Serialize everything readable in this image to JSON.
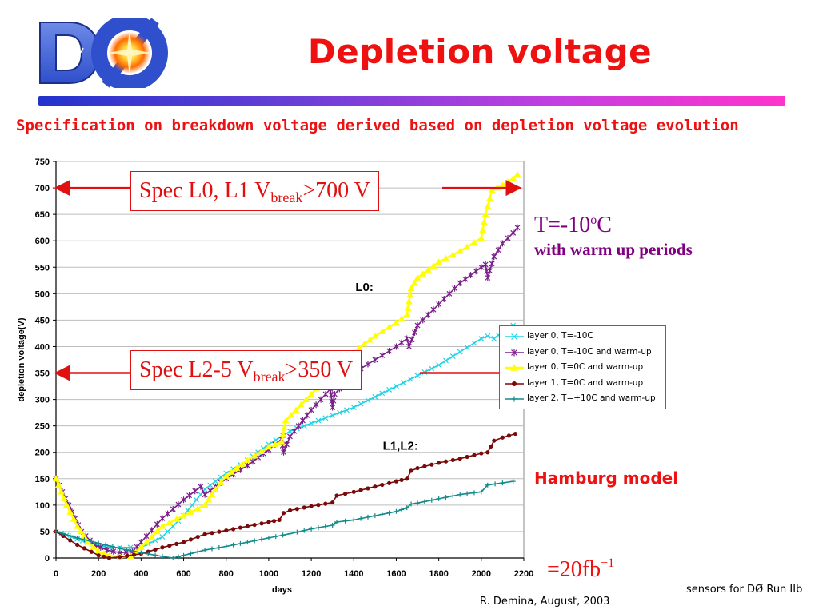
{
  "slide": {
    "title": "Depletion voltage",
    "subtitle": "Specification on breakdown voltage derived based on depletion voltage evolution",
    "logo_text": "DØ",
    "spec_l0l1": {
      "prefix": "Spec L0, L1 V",
      "sub": "break",
      "suffix": ">700 V"
    },
    "spec_l2l5": {
      "prefix": "Spec L2-5 V",
      "sub": "break",
      "suffix": ">350 V"
    },
    "temperature": {
      "main": "T=-10",
      "sup": "o",
      "unit": "C",
      "note": "with warm up periods"
    },
    "model": "Hamburg model",
    "luminosity": {
      "main": "=20fb",
      "sup": "−1"
    },
    "footer_right": "sensors for DØ Run IIb",
    "footer_left": "R. Demina, August, 2003"
  },
  "colors": {
    "title_red": "#ee1111",
    "spec_red": "#e01010",
    "purple_text": "#800080",
    "cyan": "#22d3e6",
    "purple": "#7a1f8a",
    "yellow": "#ffff00",
    "darkred": "#7a0a0a",
    "teal": "#138a8a"
  },
  "chart_data": {
    "type": "line",
    "xlabel": "days",
    "ylabel": "depletion voltage(V)",
    "xlim": [
      0,
      2200
    ],
    "ylim": [
      0,
      750
    ],
    "xticks": [
      0,
      200,
      400,
      600,
      800,
      1000,
      1200,
      1400,
      1600,
      1800,
      2000,
      2200
    ],
    "yticks": [
      0,
      50,
      100,
      150,
      200,
      250,
      300,
      350,
      400,
      450,
      500,
      550,
      600,
      650,
      700,
      750
    ],
    "grid": true,
    "legend_position": "right",
    "annotations": [
      "L0:",
      "L1,L2:"
    ],
    "reference_lines": [
      {
        "y": 700
      },
      {
        "y": 350
      }
    ],
    "series": [
      {
        "name": "layer 0, T=-10C",
        "color": "#22d3e6",
        "marker": "x",
        "x": [
          0,
          50,
          100,
          150,
          200,
          250,
          300,
          350,
          400,
          500,
          600,
          700,
          800,
          900,
          1000,
          1100,
          1200,
          1300,
          1400,
          1500,
          1600,
          1700,
          1800,
          1900,
          2000,
          2030,
          2060,
          2100,
          2150
        ],
        "y": [
          50,
          43,
          36,
          29,
          24,
          20,
          20,
          20,
          20,
          40,
          80,
          130,
          160,
          185,
          215,
          240,
          255,
          270,
          285,
          305,
          325,
          345,
          365,
          390,
          415,
          420,
          415,
          428,
          440
        ]
      },
      {
        "name": "layer 0, T=-10C and warm-up",
        "color": "#7a1f8a",
        "marker": "*",
        "x": [
          0,
          60,
          120,
          180,
          240,
          300,
          360,
          400,
          500,
          600,
          680,
          700,
          800,
          900,
          1000,
          1060,
          1070,
          1100,
          1200,
          1290,
          1300,
          1310,
          1400,
          1500,
          1600,
          1650,
          1660,
          1700,
          1800,
          1900,
          2000,
          2020,
          2030,
          2060,
          2100,
          2150,
          2170
        ],
        "y": [
          150,
          100,
          50,
          25,
          15,
          10,
          12,
          30,
          75,
          110,
          135,
          120,
          150,
          175,
          205,
          225,
          200,
          230,
          280,
          320,
          285,
          310,
          350,
          375,
          400,
          415,
          400,
          440,
          480,
          520,
          550,
          555,
          530,
          570,
          595,
          615,
          625
        ]
      },
      {
        "name": "layer 0, T=0C and warm-up",
        "color": "#ffff00",
        "marker": "triangle",
        "x": [
          0,
          50,
          100,
          150,
          200,
          250,
          300,
          350,
          400,
          500,
          600,
          700,
          750,
          800,
          900,
          1000,
          1060,
          1080,
          1200,
          1300,
          1400,
          1500,
          1600,
          1650,
          1670,
          1700,
          1800,
          1900,
          2000,
          2020,
          2050,
          2100,
          2150,
          2170
        ],
        "y": [
          150,
          100,
          60,
          30,
          12,
          5,
          2,
          3,
          20,
          60,
          80,
          100,
          130,
          155,
          185,
          210,
          220,
          260,
          310,
          355,
          390,
          420,
          445,
          460,
          510,
          530,
          560,
          580,
          605,
          650,
          695,
          705,
          718,
          725
        ]
      },
      {
        "name": "layer 1, T=0C and warm-up",
        "color": "#7a0a0a",
        "marker": "circle",
        "x": [
          0,
          100,
          200,
          250,
          300,
          400,
          500,
          600,
          700,
          800,
          900,
          1000,
          1050,
          1070,
          1100,
          1200,
          1300,
          1320,
          1400,
          1500,
          1600,
          1650,
          1670,
          1700,
          1800,
          1900,
          2000,
          2030,
          2060,
          2100,
          2160
        ],
        "y": [
          50,
          25,
          5,
          0,
          2,
          8,
          20,
          30,
          45,
          52,
          60,
          68,
          72,
          85,
          90,
          98,
          105,
          118,
          125,
          135,
          145,
          150,
          165,
          170,
          180,
          188,
          198,
          200,
          222,
          228,
          235
        ]
      },
      {
        "name": "layer 2, T=+10C and warm-up",
        "color": "#138a8a",
        "marker": "plus",
        "x": [
          0,
          100,
          200,
          300,
          400,
          500,
          550,
          600,
          700,
          800,
          900,
          1000,
          1100,
          1200,
          1300,
          1320,
          1400,
          1500,
          1600,
          1650,
          1670,
          1700,
          1800,
          1900,
          2000,
          2030,
          2100,
          2150
        ],
        "y": [
          50,
          38,
          28,
          18,
          10,
          3,
          0,
          5,
          15,
          22,
          30,
          38,
          46,
          55,
          62,
          68,
          72,
          80,
          88,
          95,
          102,
          104,
          112,
          120,
          125,
          138,
          142,
          145
        ]
      }
    ]
  }
}
